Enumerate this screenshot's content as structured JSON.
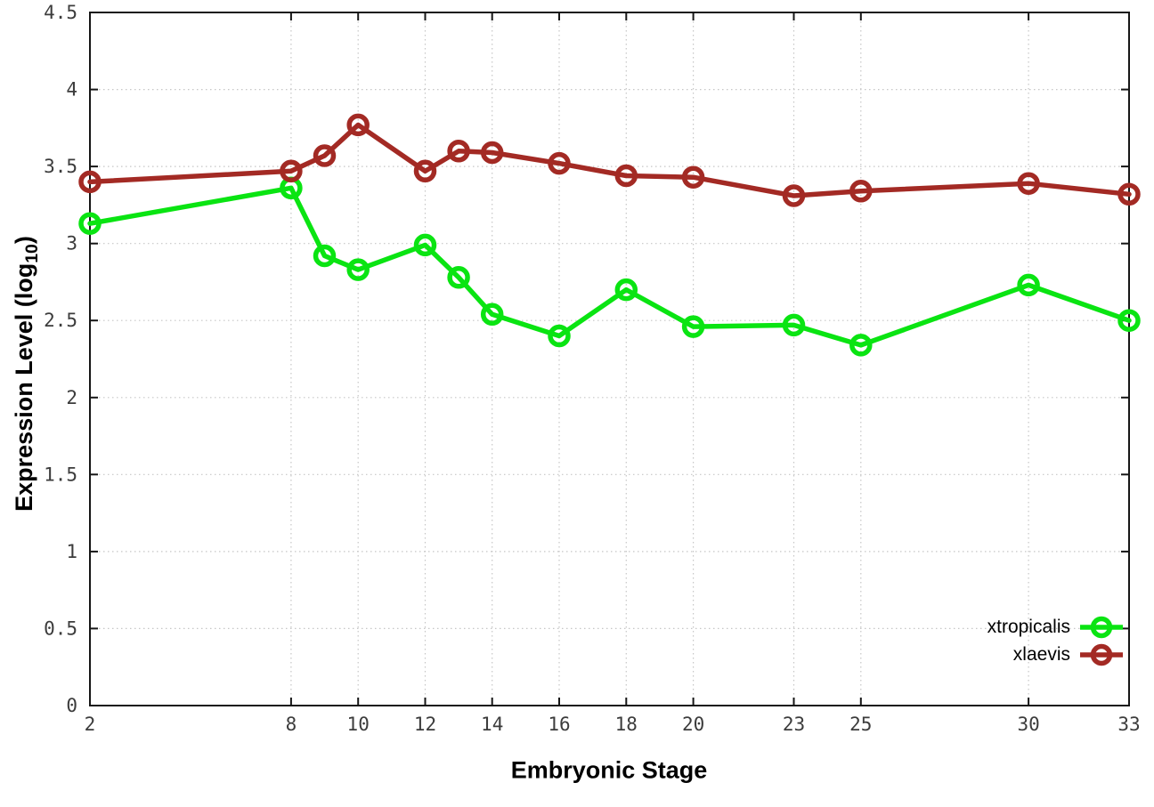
{
  "chart_data": {
    "type": "line",
    "title": "",
    "xlabel": "Embryonic Stage",
    "ylabel": "Expression Level (log10)",
    "ylabel_parts": {
      "pre": "Expression Level (log",
      "sub": "10",
      "post": ")"
    },
    "xlim": [
      2,
      33
    ],
    "ylim": [
      0,
      4.5
    ],
    "grid": true,
    "grid_style": "dotted",
    "legend_position": "bottom-right",
    "background_color": "#ffffff",
    "axis_color": "#161616",
    "x": [
      2,
      8,
      9,
      10,
      12,
      13,
      14,
      16,
      18,
      20,
      23,
      25,
      30,
      33
    ],
    "xticks": [
      2,
      8,
      10,
      12,
      14,
      16,
      18,
      20,
      23,
      25,
      30,
      33
    ],
    "yticks": [
      0,
      0.5,
      1,
      1.5,
      2,
      2.5,
      3,
      3.5,
      4,
      4.5
    ],
    "series": [
      {
        "name": "xtropicalis",
        "color": "#0ae412",
        "marker": "open-circle",
        "values": [
          3.13,
          3.36,
          2.92,
          2.83,
          2.99,
          2.78,
          2.54,
          2.4,
          2.7,
          2.46,
          2.47,
          2.34,
          2.73,
          2.5
        ]
      },
      {
        "name": "xlaevis",
        "color": "#a32a24",
        "marker": "open-circle",
        "values": [
          3.4,
          3.47,
          3.57,
          3.77,
          3.47,
          3.6,
          3.59,
          3.52,
          3.44,
          3.43,
          3.31,
          3.34,
          3.39,
          3.32
        ]
      }
    ]
  }
}
